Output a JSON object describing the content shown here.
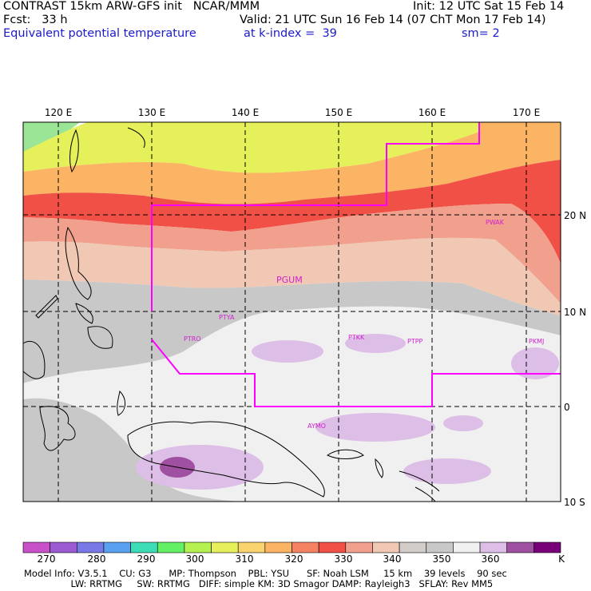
{
  "header": {
    "line1_left": "CONTRAST 15km ARW-GFS init   NCAR/MMM",
    "line1_right": "Init: 12 UTC Sat 15 Feb 14",
    "fcst": "Fcst:   33 h",
    "valid": "Valid: 21 UTC Sun 16 Feb 14 (07 ChT Mon 17 Feb 14)",
    "field": "Equivalent potential temperature",
    "level": "at k-index =  39",
    "smoothing": "sm= 2"
  },
  "map": {
    "lon_labels": [
      "120 E",
      "130 E",
      "140 E",
      "150 E",
      "160 E",
      "170 E"
    ],
    "lat_labels": [
      "20 N",
      "10 N",
      "0",
      "10 S"
    ],
    "stations": [
      {
        "id": "PGUM",
        "big": true
      },
      {
        "id": "PTYA"
      },
      {
        "id": "PTRO"
      },
      {
        "id": "PTKK"
      },
      {
        "id": "PTPP"
      },
      {
        "id": "PKMJ"
      },
      {
        "id": "PWAK"
      },
      {
        "id": "AYMO"
      }
    ],
    "boundary_color": "#ff00ff"
  },
  "colorbar": {
    "labels": [
      "270",
      "280",
      "290",
      "300",
      "310",
      "320",
      "330",
      "340",
      "350",
      "360",
      "K"
    ],
    "colors": [
      "#c850c8",
      "#9a5ad2",
      "#7878e6",
      "#5aa0f0",
      "#3cdcb4",
      "#64f064",
      "#b4f050",
      "#e6f05a",
      "#fad26e",
      "#fab464",
      "#f68264",
      "#f05046",
      "#f0a08c",
      "#f0c8b4",
      "#d2cdc8",
      "#c8c8c8",
      "#f0f0f0",
      "#dcbee6",
      "#a050a0",
      "#780078"
    ]
  },
  "model_info": {
    "line1": "Model Info: V3.5.1    CU: G3      MP: Thompson    PBL: YSU      SF: Noah LSM     15 km    39 levels    90 sec",
    "line2": "                LW: RRTMG     SW: RRTMG   DIFF: simple KM: 3D Smagor DAMP: Rayleigh3   SFLAY: Rev MM5"
  }
}
